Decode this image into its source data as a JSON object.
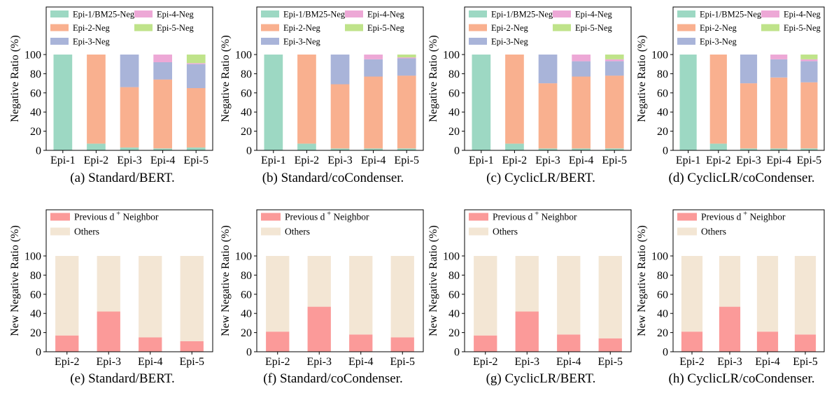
{
  "colors": {
    "Epi-1/BM25-Neg": "#9dd8c3",
    "Epi-2-Neg": "#f9b08f",
    "Epi-3-Neg": "#a9b4d9",
    "Epi-4-Neg": "#eda8d6",
    "Epi-5-Neg": "#bfe38a",
    "Previous d + Neighbor": "#fb9a99",
    "Others": "#f3e6d4"
  },
  "chart_data": [
    {
      "type": "bar",
      "stacked": true,
      "caption": "(a) Standard/BERT.",
      "categories": [
        "Epi-1",
        "Epi-2",
        "Epi-3",
        "Epi-4",
        "Epi-5"
      ],
      "series": [
        {
          "name": "Epi-1/BM25-Neg",
          "values": [
            100,
            7,
            3,
            2,
            3
          ]
        },
        {
          "name": "Epi-2-Neg",
          "values": [
            0,
            93,
            63,
            72,
            62
          ]
        },
        {
          "name": "Epi-3-Neg",
          "values": [
            0,
            0,
            34,
            18,
            25
          ]
        },
        {
          "name": "Epi-4-Neg",
          "values": [
            0,
            0,
            0,
            8,
            1
          ]
        },
        {
          "name": "Epi-5-Neg",
          "values": [
            0,
            0,
            0,
            0,
            9
          ]
        }
      ],
      "xlabel": "",
      "ylabel": "Negative Ratio (%)",
      "ylim": [
        0,
        100
      ],
      "yticks": [
        0,
        20,
        40,
        60,
        80,
        100
      ],
      "legend": "top"
    },
    {
      "type": "bar",
      "stacked": true,
      "caption": "(b) Standard/coCondenser.",
      "categories": [
        "Epi-1",
        "Epi-2",
        "Epi-3",
        "Epi-4",
        "Epi-5"
      ],
      "series": [
        {
          "name": "Epi-1/BM25-Neg",
          "values": [
            100,
            7,
            2,
            2,
            2
          ]
        },
        {
          "name": "Epi-2-Neg",
          "values": [
            0,
            93,
            67,
            75,
            76
          ]
        },
        {
          "name": "Epi-3-Neg",
          "values": [
            0,
            0,
            31,
            18,
            18
          ]
        },
        {
          "name": "Epi-4-Neg",
          "values": [
            0,
            0,
            0,
            5,
            1
          ]
        },
        {
          "name": "Epi-5-Neg",
          "values": [
            0,
            0,
            0,
            0,
            3
          ]
        }
      ],
      "xlabel": "",
      "ylabel": "Negative Ratio (%)",
      "ylim": [
        0,
        100
      ],
      "yticks": [
        0,
        20,
        40,
        60,
        80,
        100
      ],
      "legend": "top"
    },
    {
      "type": "bar",
      "stacked": true,
      "caption": "(c) CyclicLR/BERT.",
      "categories": [
        "Epi-1",
        "Epi-2",
        "Epi-3",
        "Epi-4",
        "Epi-5"
      ],
      "series": [
        {
          "name": "Epi-1/BM25-Neg",
          "values": [
            100,
            7,
            2,
            2,
            2
          ]
        },
        {
          "name": "Epi-2-Neg",
          "values": [
            0,
            93,
            68,
            75,
            76
          ]
        },
        {
          "name": "Epi-3-Neg",
          "values": [
            0,
            0,
            30,
            16,
            15
          ]
        },
        {
          "name": "Epi-4-Neg",
          "values": [
            0,
            0,
            0,
            7,
            2
          ]
        },
        {
          "name": "Epi-5-Neg",
          "values": [
            0,
            0,
            0,
            0,
            5
          ]
        }
      ],
      "xlabel": "",
      "ylabel": "Negative Ratio (%)",
      "ylim": [
        0,
        100
      ],
      "yticks": [
        0,
        20,
        40,
        60,
        80,
        100
      ],
      "legend": "top"
    },
    {
      "type": "bar",
      "stacked": true,
      "caption": "(d) CyclicLR/coCondenser.",
      "categories": [
        "Epi-1",
        "Epi-2",
        "Epi-3",
        "Epi-4",
        "Epi-5"
      ],
      "series": [
        {
          "name": "Epi-1/BM25-Neg",
          "values": [
            100,
            7,
            2,
            2,
            2
          ]
        },
        {
          "name": "Epi-2-Neg",
          "values": [
            0,
            93,
            68,
            74,
            69
          ]
        },
        {
          "name": "Epi-3-Neg",
          "values": [
            0,
            0,
            30,
            19,
            22
          ]
        },
        {
          "name": "Epi-4-Neg",
          "values": [
            0,
            0,
            0,
            5,
            2
          ]
        },
        {
          "name": "Epi-5-Neg",
          "values": [
            0,
            0,
            0,
            0,
            5
          ]
        }
      ],
      "xlabel": "",
      "ylabel": "Negative Ratio (%)",
      "ylim": [
        0,
        100
      ],
      "yticks": [
        0,
        20,
        40,
        60,
        80,
        100
      ],
      "legend": "top"
    },
    {
      "type": "bar",
      "stacked": true,
      "caption": "(e) Standard/BERT.",
      "categories": [
        "Epi-2",
        "Epi-3",
        "Epi-4",
        "Epi-5"
      ],
      "series": [
        {
          "name": "Previous d + Neighbor",
          "values": [
            17,
            42,
            15,
            11
          ]
        },
        {
          "name": "Others",
          "values": [
            83,
            58,
            85,
            89
          ]
        }
      ],
      "xlabel": "",
      "ylabel": "New Negative Ratio (%)",
      "ylim": [
        0,
        100
      ],
      "yticks": [
        0,
        20,
        40,
        60,
        80,
        100
      ],
      "legend": "top"
    },
    {
      "type": "bar",
      "stacked": true,
      "caption": "(f) Standard/coCondenser.",
      "categories": [
        "Epi-2",
        "Epi-3",
        "Epi-4",
        "Epi-5"
      ],
      "series": [
        {
          "name": "Previous d + Neighbor",
          "values": [
            21,
            47,
            18,
            15
          ]
        },
        {
          "name": "Others",
          "values": [
            79,
            53,
            82,
            85
          ]
        }
      ],
      "xlabel": "",
      "ylabel": "New Negative Ratio (%)",
      "ylim": [
        0,
        100
      ],
      "yticks": [
        0,
        20,
        40,
        60,
        80,
        100
      ],
      "legend": "top"
    },
    {
      "type": "bar",
      "stacked": true,
      "caption": "(g) CyclicLR/BERT.",
      "categories": [
        "Epi-2",
        "Epi-3",
        "Epi-4",
        "Epi-5"
      ],
      "series": [
        {
          "name": "Previous d + Neighbor",
          "values": [
            17,
            42,
            18,
            14
          ]
        },
        {
          "name": "Others",
          "values": [
            83,
            58,
            82,
            86
          ]
        }
      ],
      "xlabel": "",
      "ylabel": "New Negative Ratio (%)",
      "ylim": [
        0,
        100
      ],
      "yticks": [
        0,
        20,
        40,
        60,
        80,
        100
      ],
      "legend": "top"
    },
    {
      "type": "bar",
      "stacked": true,
      "caption": "(h) CyclicLR/coCondenser.",
      "categories": [
        "Epi-2",
        "Epi-3",
        "Epi-4",
        "Epi-5"
      ],
      "series": [
        {
          "name": "Previous d + Neighbor",
          "values": [
            21,
            47,
            21,
            18
          ]
        },
        {
          "name": "Others",
          "values": [
            79,
            53,
            79,
            82
          ]
        }
      ],
      "xlabel": "",
      "ylabel": "New Negative Ratio (%)",
      "ylim": [
        0,
        100
      ],
      "yticks": [
        0,
        20,
        40,
        60,
        80,
        100
      ],
      "legend": "top"
    }
  ]
}
